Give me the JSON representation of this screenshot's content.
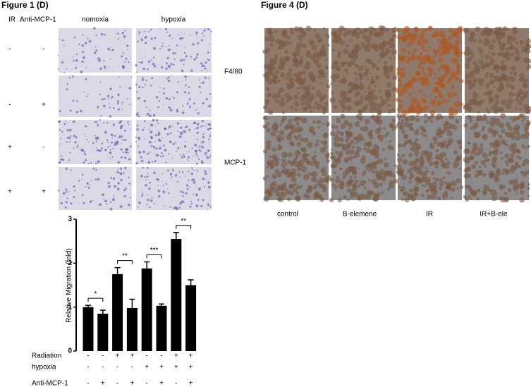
{
  "figure1": {
    "title": "Figure 1 (D)",
    "header": [
      "IR",
      "Anti-MCP-1"
    ],
    "columns": [
      "nomoxia",
      "hypoxia"
    ],
    "rows": [
      [
        "-",
        "-"
      ],
      [
        "-",
        "+"
      ],
      [
        "+",
        "-"
      ],
      [
        "+",
        "+"
      ]
    ]
  },
  "chart_data": {
    "type": "bar",
    "ylabel": "Relative Migration (fold)",
    "categories": [
      null,
      null,
      null,
      null,
      null,
      null,
      null,
      null
    ],
    "values": [
      1.0,
      0.85,
      1.75,
      0.98,
      1.88,
      1.03,
      2.55,
      1.5
    ],
    "errors": [
      0.04,
      0.08,
      0.15,
      0.2,
      0.15,
      0.04,
      0.15,
      0.12
    ],
    "color": "#000000",
    "ylim": [
      0,
      3
    ],
    "yticks": [
      0,
      1,
      2,
      3
    ],
    "annotations": [
      "*",
      "**",
      "***",
      "**"
    ],
    "conditions": [
      {
        "name": "Radiation",
        "values": [
          "-",
          "-",
          "+",
          "+",
          "-",
          "-",
          "+",
          "+"
        ]
      },
      {
        "name": "hypoxia",
        "values": [
          "-",
          "-",
          "-",
          "-",
          "+",
          "+",
          "+",
          "+"
        ]
      },
      {
        "name": "Anti-MCP-1",
        "values": [
          "-",
          "+",
          "-",
          "+",
          "-",
          "+",
          "-",
          "+"
        ]
      }
    ]
  },
  "figure4": {
    "title": "Figure 4 (D)",
    "rows": [
      "F4/80",
      "MCP-1"
    ],
    "columns": [
      "control",
      "B-elemene",
      "IR",
      "IR+B-ele"
    ]
  }
}
